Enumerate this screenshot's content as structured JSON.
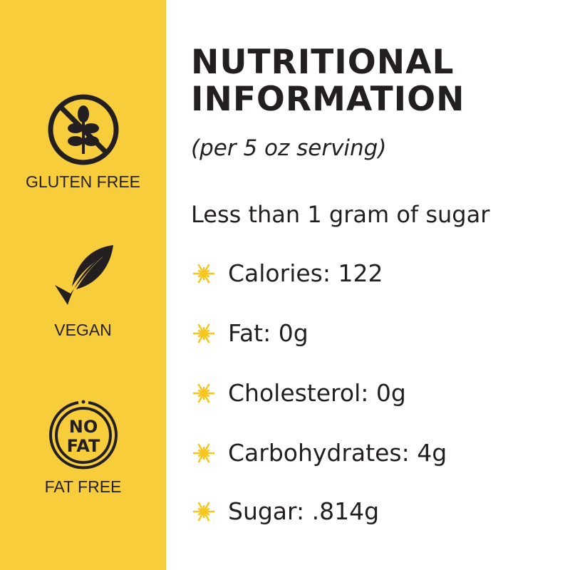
{
  "badges": [
    {
      "icon": "gluten-free-icon",
      "label": "GLUTEN FREE"
    },
    {
      "icon": "vegan-leaf-check-icon",
      "label": "VEGAN"
    },
    {
      "icon": "no-fat-icon",
      "label": "FAT FREE",
      "icon_text": [
        "NO",
        "FAT"
      ]
    }
  ],
  "title_lines": [
    "NUTRITIONAL",
    "INFORMATION"
  ],
  "subtitle": "(per 5 oz serving)",
  "lead": "Less than 1 gram of sugar",
  "items": [
    "Calories: 122",
    "Fat: 0g",
    "Cholesterol: 0g",
    "Carbohydrates: 4g",
    "Sugar: .814g"
  ],
  "colors": {
    "panel": "#f8cd3b",
    "text": "#231f20",
    "star": "#f7c51c"
  }
}
